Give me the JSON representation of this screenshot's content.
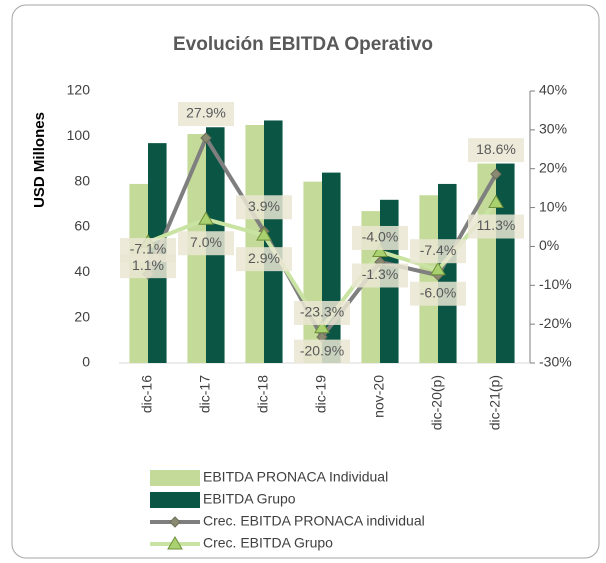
{
  "chart_data": {
    "type": "bar",
    "title": "Evolución EBITDA Operativo",
    "y_label": "USD Millones",
    "categories": [
      "dic-16",
      "dic-17",
      "dic-18",
      "dic-19",
      "nov-20",
      "dic-20(p)",
      "dic-21(p)"
    ],
    "ylim": [
      0,
      120
    ],
    "yticks": [
      0,
      20,
      40,
      60,
      80,
      100,
      120
    ],
    "y2lim": [
      -30,
      40
    ],
    "y2ticks": [
      {
        "value": -30,
        "label": "-30%"
      },
      {
        "value": -20,
        "label": "-20%"
      },
      {
        "value": -10,
        "label": "-10%"
      },
      {
        "value": 0,
        "label": "0%"
      },
      {
        "value": 10,
        "label": "10%"
      },
      {
        "value": 20,
        "label": "20%"
      },
      {
        "value": 30,
        "label": "30%"
      },
      {
        "value": 40,
        "label": "40%"
      }
    ],
    "series": [
      {
        "name": "EBITDA PRONACA Individual",
        "type": "bar",
        "color": "#c3da98",
        "values": [
          79,
          101,
          105,
          80,
          67,
          74,
          88
        ]
      },
      {
        "name": "EBITDA Grupo",
        "type": "bar",
        "color": "#0b5545",
        "values": [
          97,
          104,
          107,
          84,
          72,
          79,
          88
        ]
      },
      {
        "name": "Crec. EBITDA PRONACA individual",
        "type": "line",
        "axis": "y2",
        "color": "#7f7f7f",
        "marker": "diamond",
        "values": [
          -7.1,
          27.9,
          3.9,
          -23.3,
          -4.0,
          -7.4,
          18.6
        ],
        "value_labels": [
          "-7.1%",
          "27.9%",
          "3.9%",
          "-23.3%",
          "-4.0%",
          "-7.4%",
          "18.6%"
        ]
      },
      {
        "name": "Crec. EBITDA Grupo",
        "type": "line",
        "axis": "y2",
        "color": "#c9e3a3",
        "marker": "triangle",
        "values": [
          1.1,
          7.0,
          2.9,
          -20.9,
          -1.3,
          -6.0,
          11.3
        ],
        "value_labels": [
          "1.1%",
          "7.0%",
          "2.9%",
          "-20.9%",
          "-1.3%",
          "-6.0%",
          "11.3%"
        ]
      }
    ]
  }
}
